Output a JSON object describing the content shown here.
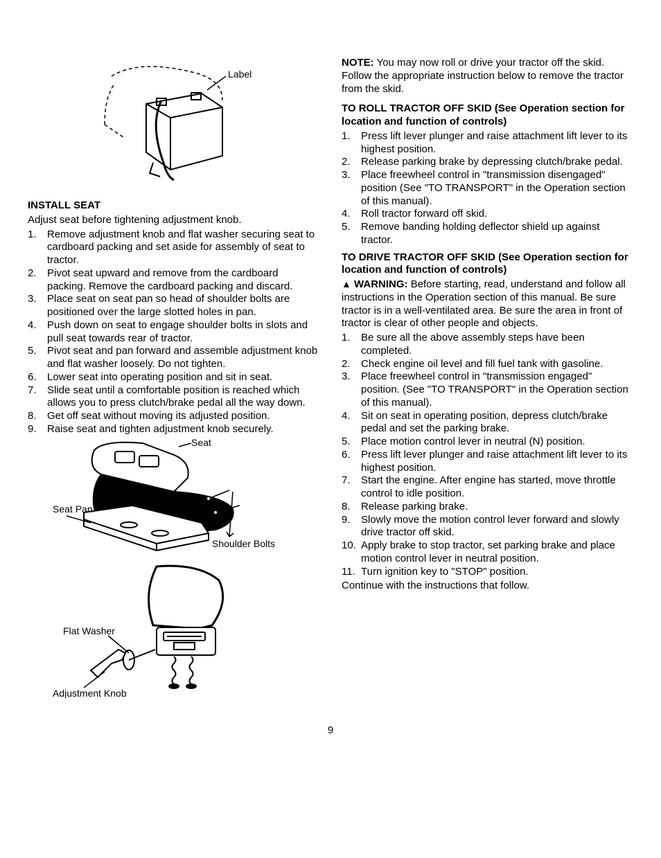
{
  "page_number": "9",
  "left": {
    "fig_top_label": "Label",
    "install_seat_title": "INSTALL SEAT",
    "install_seat_intro": "Adjust seat before tightening adjustment knob.",
    "install_seat_steps": [
      "Remove adjustment knob and flat washer securing seat to cardboard packing and set aside for assembly of seat to tractor.",
      "Pivot seat upward and remove from the cardboard packing. Remove the cardboard packing and discard.",
      "Place seat on seat pan so head of shoulder bolts are positioned over the large slotted holes in pan.",
      "Push down on seat to engage shoulder bolts in slots and pull seat towards rear of tractor.",
      "Pivot seat and pan forward and assemble adjustment knob and flat washer loosely. Do not tighten.",
      "Lower seat into operating position and sit in seat.",
      "Slide seat until a comfortable position is reached which allows you to press clutch/brake pedal all the way down.",
      "Get off seat without moving its adjusted position.",
      "Raise seat and tighten adjustment knob securely."
    ],
    "fig_seat_label": "Seat",
    "fig_seat_pan_label": "Seat Pan",
    "fig_shoulder_bolts_label": "Shoulder Bolts",
    "fig_flat_washer_label": "Flat Washer",
    "fig_adjustment_knob_label": "Adjustment Knob"
  },
  "right": {
    "note_label": "NOTE:",
    "note_text": " You may now roll or drive your tractor off the skid. Follow the appropriate instruction below to remove the tractor from the skid.",
    "roll_title": "TO ROLL TRACTOR OFF SKID (See Operation section for location and function of controls)",
    "roll_steps": [
      "Press lift lever plunger and raise attachment lift lever to its highest position.",
      "Release parking brake by depressing clutch/brake pedal.",
      "Place freewheel control in \"transmission disengaged\" position (See \"TO TRANSPORT\" in the Operation section of this manual).",
      "Roll tractor forward off skid.",
      "Remove banding holding deflector shield up against tractor."
    ],
    "drive_title": "TO DRIVE TRACTOR OFF SKID (See Operation section for location and function of controls)",
    "warning_label": "WARNING:",
    "warning_text": " Before starting, read, understand and follow all instructions in the Operation section of this manual. Be sure tractor is in a well-ventilated area. Be sure the area in  front of tractor is clear of other people and objects.",
    "drive_steps": [
      "Be sure all the above assembly steps have been completed.",
      "Check engine oil level and fill fuel tank with gasoline.",
      "Place freewheel control in \"transmission engaged\" position. (See \"TO TRANSPORT\" in the Operation section of this manual).",
      "Sit on seat in operating position, depress clutch/brake pedal and set the parking brake.",
      "Place motion control lever in neutral (N) position.",
      "Press lift lever plunger and raise attachment lift lever to its highest position.",
      "Start the engine. After engine has started, move throttle control to idle position.",
      "Release parking brake.",
      "Slowly move the motion control lever forward and slowly drive tractor off skid.",
      "Apply brake to stop tractor, set parking brake and place motion control lever in neutral position.",
      "Turn ignition key to \"STOP\" position."
    ],
    "continue_text": "Continue with the instructions that follow."
  }
}
